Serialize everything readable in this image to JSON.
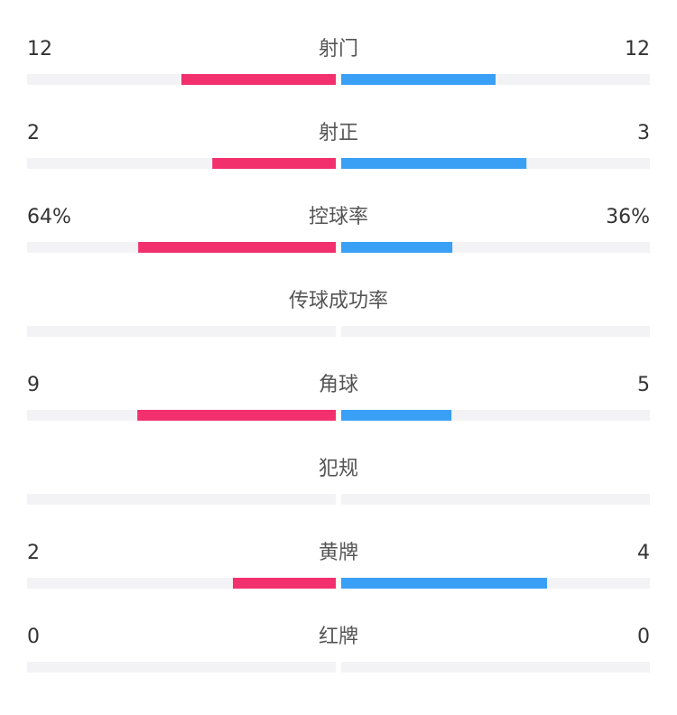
{
  "stats": [
    {
      "label": "射门",
      "home": 12,
      "away": 12
    },
    {
      "label": "射正",
      "home": 2,
      "away": 3
    },
    {
      "label": "控球率",
      "home": {
        "value": 64,
        "label": "64%"
      },
      "away": {
        "value": 36,
        "label": "36%"
      }
    },
    {
      "label": "传球成功率"
    },
    {
      "label": "角球",
      "home": 9,
      "away": 5
    },
    {
      "label": "犯规"
    },
    {
      "label": "黄牌",
      "home": 2,
      "away": 4
    },
    {
      "label": "红牌",
      "home": 0,
      "away": 0
    }
  ],
  "colors": {
    "home": "#f2306e",
    "away": "#3aa0f6"
  }
}
